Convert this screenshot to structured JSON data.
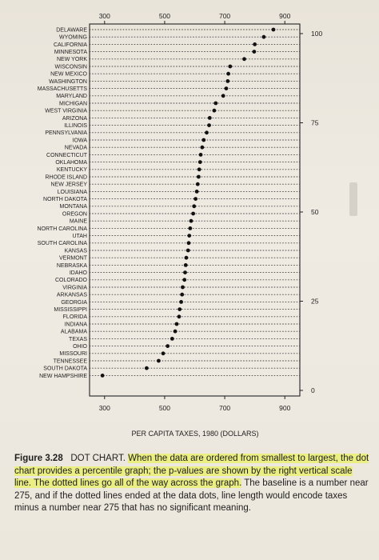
{
  "chart_data": {
    "type": "dot",
    "title": "",
    "xlabel": "PER CAPITA TAXES, 1980 (DOLLARS)",
    "ylabel": "",
    "xlim": [
      250,
      950
    ],
    "x_ticks": [
      300,
      500,
      700,
      900
    ],
    "right_axis": {
      "ticks": [
        0,
        25,
        50,
        75,
        100
      ],
      "range": [
        0,
        100
      ]
    },
    "grid": "dotted lines from the left frame to the right frame for every state",
    "categories": [
      "DELAWARE",
      "WYOMING",
      "CALIFORNIA",
      "MINNESOTA",
      "NEW YORK",
      "WISCONSIN",
      "NEW MEXICO",
      "WASHINGTON",
      "MASSACHUSETTS",
      "MARYLAND",
      "MICHIGAN",
      "WEST VIRGINIA",
      "ARIZONA",
      "ILLINOIS",
      "PENNSYLVANIA",
      "IOWA",
      "NEVADA",
      "CONNECTICUT",
      "OKLAHOMA",
      "KENTUCKY",
      "RHODE ISLAND",
      "NEW JERSEY",
      "LOUISIANA",
      "NORTH DAKOTA",
      "MONTANA",
      "OREGON",
      "MAINE",
      "NORTH CAROLINA",
      "UTAH",
      "SOUTH CAROLINA",
      "KANSAS",
      "VERMONT",
      "NEBRASKA",
      "IDAHO",
      "COLORADO",
      "VIRGINIA",
      "ARKANSAS",
      "GEORGIA",
      "MISSISSIPPI",
      "FLORIDA",
      "INDIANA",
      "ALABAMA",
      "TEXAS",
      "OHIO",
      "MISSOURI",
      "TENNESSEE",
      "SOUTH DAKOTA",
      "NEW HAMPSHIRE"
    ],
    "values": [
      862,
      830,
      800,
      798,
      765,
      718,
      712,
      710,
      705,
      695,
      670,
      665,
      650,
      648,
      640,
      630,
      625,
      620,
      618,
      615,
      613,
      610,
      607,
      603,
      598,
      595,
      588,
      585,
      582,
      580,
      578,
      572,
      570,
      568,
      566,
      560,
      558,
      555,
      550,
      548,
      540,
      535,
      525,
      510,
      495,
      480,
      440,
      293
    ]
  },
  "caption": {
    "figure_label": "Figure 3.28",
    "plain_1": "DOT CHART. ",
    "highlight": "When the data are ordered from smallest to largest, the dot chart provides a percentile graph; the p-values are shown by the right vertical scale line. The dotted lines go all of the way across the graph.",
    "plain_2": " The baseline is a number near 275, and if the dotted lines ended at the data dots, line length would encode taxes minus a number near 275 that has no significant meaning."
  }
}
